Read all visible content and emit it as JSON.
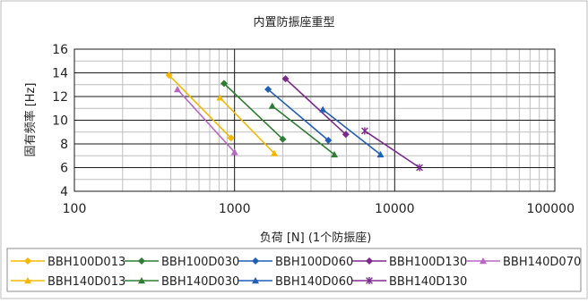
{
  "chart_data": {
    "type": "line",
    "title": "内置防振座重型",
    "xlabel": "负荷 [N] (1个防振座)",
    "ylabel": "固有频率 [Hz]",
    "x_scale": "log",
    "xlim": [
      100,
      100000
    ],
    "ylim": [
      4,
      16
    ],
    "x_ticks": [
      100,
      1000,
      10000,
      100000
    ],
    "x_tick_labels": [
      "100",
      "1000",
      "10000",
      "100000"
    ],
    "y_ticks": [
      4,
      6,
      8,
      10,
      12,
      14,
      16
    ],
    "y_tick_labels": [
      "4",
      "6",
      "8",
      "10",
      "12",
      "14",
      "16"
    ],
    "grid": "on",
    "legend_position": "bottom",
    "series": [
      {
        "name": "BBH100D013",
        "color": "#f5b800",
        "marker": "diamond",
        "points": [
          [
            390,
            13.8
          ],
          [
            950,
            8.5
          ]
        ]
      },
      {
        "name": "BBH100D030",
        "color": "#2e7d32",
        "marker": "diamond",
        "points": [
          [
            860,
            13.1
          ],
          [
            2000,
            8.4
          ]
        ]
      },
      {
        "name": "BBH100D060",
        "color": "#1f5fb5",
        "marker": "diamond",
        "points": [
          [
            1620,
            12.6
          ],
          [
            3850,
            8.3
          ]
        ]
      },
      {
        "name": "BBH100D130",
        "color": "#7b2a8c",
        "marker": "diamond",
        "points": [
          [
            2080,
            13.5
          ],
          [
            4950,
            8.8
          ]
        ]
      },
      {
        "name": "BBH140D070",
        "color": "#b768c2",
        "marker": "triangle",
        "points": [
          [
            440,
            12.6
          ],
          [
            1000,
            7.3
          ]
        ]
      },
      {
        "name": "BBH140D013",
        "color": "#f5b800",
        "marker": "triangle",
        "points": [
          [
            810,
            11.9
          ],
          [
            1770,
            7.2
          ]
        ]
      },
      {
        "name": "BBH140D030",
        "color": "#2e7d32",
        "marker": "triangle",
        "points": [
          [
            1720,
            11.2
          ],
          [
            4200,
            7.1
          ]
        ]
      },
      {
        "name": "BBH140D060",
        "color": "#1f5fb5",
        "marker": "triangle",
        "points": [
          [
            3560,
            10.9
          ],
          [
            8150,
            7.1
          ]
        ]
      },
      {
        "name": "BBH140D130",
        "color": "#7b2a8c",
        "marker": "star",
        "points": [
          [
            6500,
            9.1
          ],
          [
            14300,
            6.0
          ]
        ]
      }
    ]
  }
}
